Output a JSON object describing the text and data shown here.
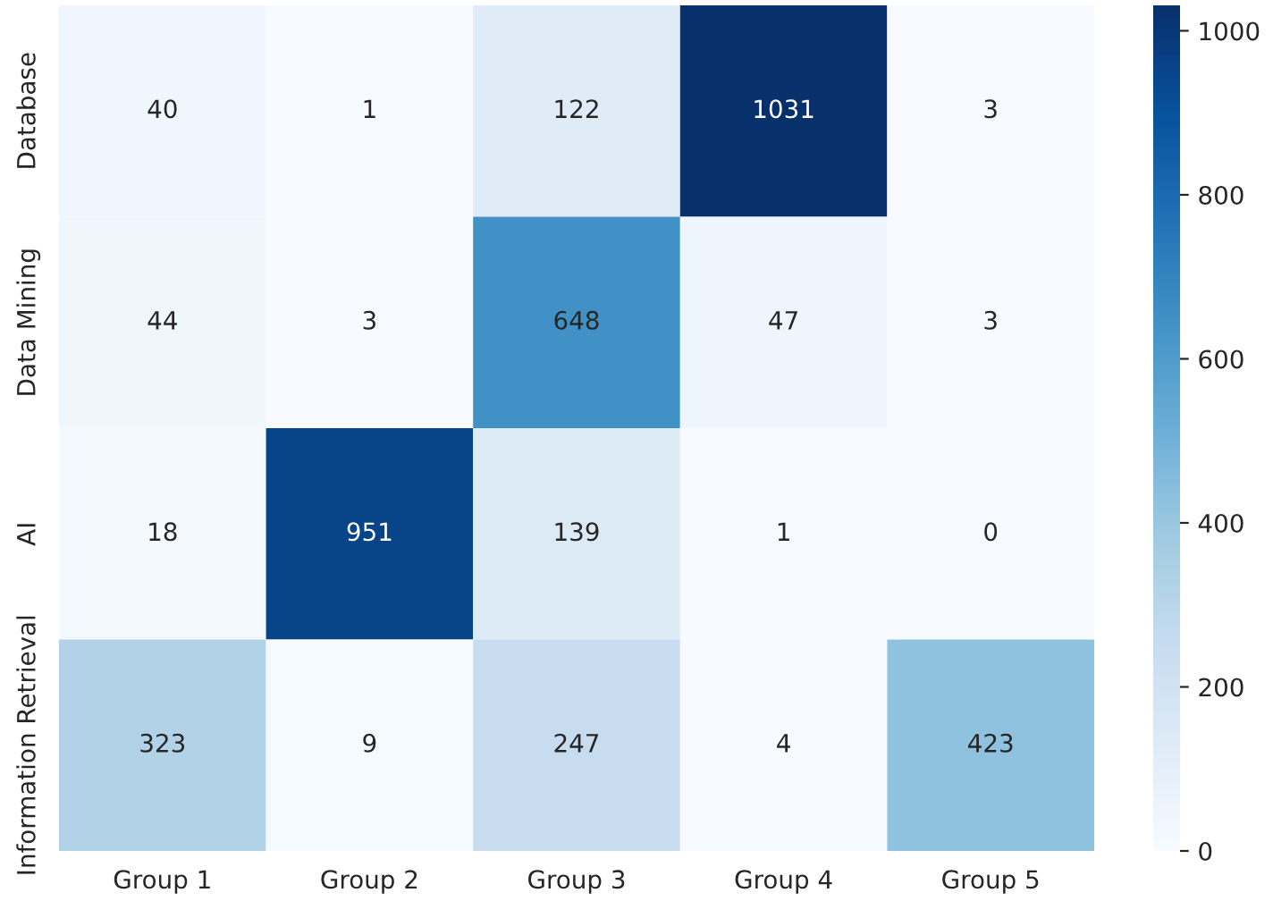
{
  "chart_data": {
    "type": "heatmap",
    "categories": [
      "Group 1",
      "Group 2",
      "Group 3",
      "Group 4",
      "Group 5"
    ],
    "y_categories": [
      "Database",
      "Data Mining",
      "AI",
      "Information Retrieval"
    ],
    "cells": [
      [
        40,
        1,
        122,
        1031,
        3
      ],
      [
        44,
        3,
        648,
        47,
        3
      ],
      [
        18,
        951,
        139,
        1,
        0
      ],
      [
        323,
        9,
        247,
        4,
        423
      ]
    ],
    "data_labels": true,
    "clim": [
      0,
      1031
    ],
    "cticks": [
      0,
      200,
      400,
      600,
      800,
      1000
    ]
  }
}
